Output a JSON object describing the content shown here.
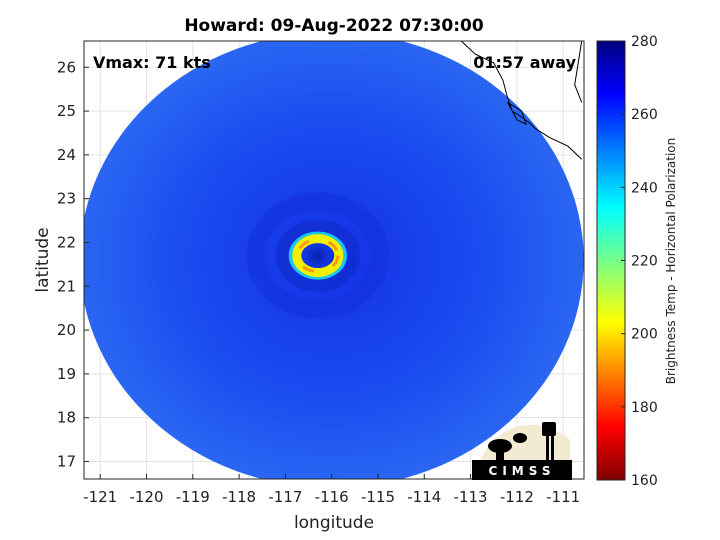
{
  "chart_data": {
    "type": "heatmap",
    "title": "Howard: 09-Aug-2022 07:30:00",
    "annotations": {
      "vmax": "Vmax: 71 kts",
      "time_away": "01:57 away"
    },
    "xlabel": "longitude",
    "ylabel": "latitude",
    "xlim": [
      -121.35,
      -110.55
    ],
    "ylim": [
      16.6,
      26.6
    ],
    "xticks": [
      -121,
      -120,
      -119,
      -118,
      -117,
      -116,
      -115,
      -114,
      -113,
      -112,
      -111
    ],
    "yticks": [
      17,
      18,
      19,
      20,
      21,
      22,
      23,
      24,
      25,
      26
    ],
    "grid": true,
    "colorbar": {
      "label": "Brightness Temp - Horizontal Polarization",
      "range": [
        160,
        280
      ],
      "ticks": [
        160,
        180,
        200,
        220,
        240,
        260,
        280
      ],
      "colormap": "jet"
    },
    "swath": {
      "center_lon": -116.0,
      "center_lat": 21.6,
      "background_temp": 262
    },
    "eye": {
      "lon": -116.3,
      "lat": 21.7,
      "eyewall_min_temp": 190,
      "eye_temp": 255
    },
    "coastline": "Baja California (upper right)",
    "logo": {
      "text": "CIMSS"
    }
  }
}
